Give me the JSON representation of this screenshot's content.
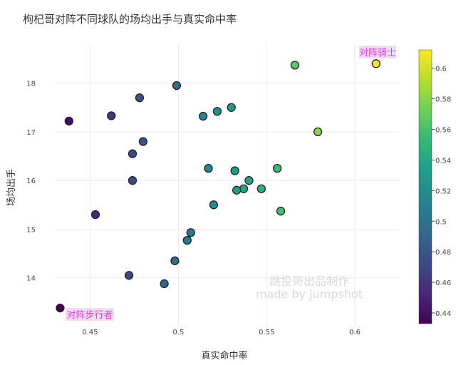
{
  "chart_data": {
    "type": "scatter",
    "title": "枸杞哥对阵不同球队的场均出手与真实命中率",
    "xlabel": "真实命中率",
    "ylabel": "场均出手",
    "xlim": [
      0.43,
      0.625
    ],
    "ylim": [
      13.0,
      18.8
    ],
    "xticks": [
      0.45,
      0.5,
      0.55,
      0.6
    ],
    "yticks": [
      14,
      15,
      16,
      17,
      18
    ],
    "grid": true,
    "colorscale": "viridis",
    "color_range": [
      0.433,
      0.612
    ],
    "colorbar_ticks": [
      0.44,
      0.46,
      0.48,
      0.5,
      0.52,
      0.54,
      0.56,
      0.58,
      0.6
    ],
    "points": [
      {
        "x": 0.612,
        "y": 18.4
      },
      {
        "x": 0.566,
        "y": 18.37
      },
      {
        "x": 0.579,
        "y": 17.0
      },
      {
        "x": 0.556,
        "y": 16.25
      },
      {
        "x": 0.558,
        "y": 15.37
      },
      {
        "x": 0.547,
        "y": 15.83
      },
      {
        "x": 0.54,
        "y": 16.0
      },
      {
        "x": 0.537,
        "y": 15.83
      },
      {
        "x": 0.533,
        "y": 15.8
      },
      {
        "x": 0.532,
        "y": 16.2
      },
      {
        "x": 0.53,
        "y": 17.5
      },
      {
        "x": 0.522,
        "y": 17.42
      },
      {
        "x": 0.517,
        "y": 16.25
      },
      {
        "x": 0.514,
        "y": 17.32
      },
      {
        "x": 0.52,
        "y": 15.5
      },
      {
        "x": 0.507,
        "y": 14.93
      },
      {
        "x": 0.505,
        "y": 14.77
      },
      {
        "x": 0.499,
        "y": 17.95
      },
      {
        "x": 0.498,
        "y": 14.35
      },
      {
        "x": 0.492,
        "y": 13.88
      },
      {
        "x": 0.48,
        "y": 16.8
      },
      {
        "x": 0.478,
        "y": 17.7
      },
      {
        "x": 0.474,
        "y": 16.55
      },
      {
        "x": 0.474,
        "y": 16.0
      },
      {
        "x": 0.472,
        "y": 14.05
      },
      {
        "x": 0.462,
        "y": 17.33
      },
      {
        "x": 0.453,
        "y": 15.3
      },
      {
        "x": 0.438,
        "y": 17.22
      },
      {
        "x": 0.433,
        "y": 13.38
      }
    ],
    "annotations": [
      {
        "text": "对阵骑士",
        "x": 0.612,
        "y": 18.4
      },
      {
        "text": "对阵步行者",
        "x": 0.433,
        "y": 13.38
      }
    ],
    "watermark": [
      "跳投哥出品制作",
      "made by jumpshot"
    ]
  }
}
